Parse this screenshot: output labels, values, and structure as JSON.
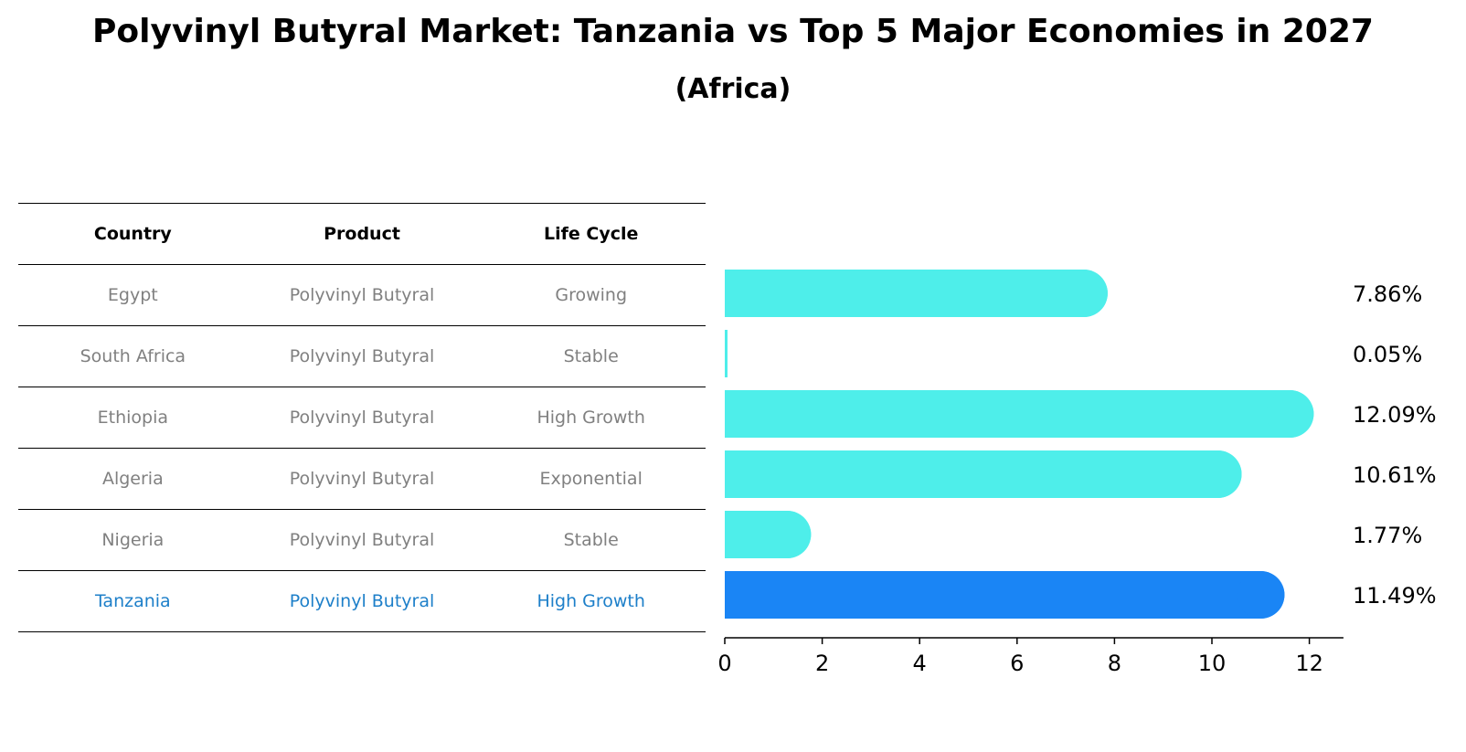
{
  "title": "Polyvinyl Butyral Market: Tanzania vs Top 5 Major Economies in 2027",
  "subtitle": "(Africa)",
  "table": {
    "headers": [
      "Country",
      "Product",
      "Life Cycle"
    ],
    "rows": [
      {
        "country": "Egypt",
        "product": "Polyvinyl Butyral",
        "life_cycle": "Growing"
      },
      {
        "country": "South Africa",
        "product": "Polyvinyl Butyral",
        "life_cycle": "Stable"
      },
      {
        "country": "Ethiopia",
        "product": "Polyvinyl Butyral",
        "life_cycle": "High Growth"
      },
      {
        "country": "Algeria",
        "product": "Polyvinyl Butyral",
        "life_cycle": "Exponential"
      },
      {
        "country": "Nigeria",
        "product": "Polyvinyl Butyral",
        "life_cycle": "Stable"
      },
      {
        "country": "Tanzania",
        "product": "Polyvinyl Butyral",
        "life_cycle": "High Growth"
      }
    ]
  },
  "colors": {
    "bar": "#4eeeea",
    "highlight_bar": "#1a85f5",
    "highlight_text": "#1d7fc9",
    "muted_text": "#808080"
  },
  "chart_data": {
    "type": "bar",
    "orientation": "horizontal",
    "categories": [
      "Egypt",
      "South Africa",
      "Ethiopia",
      "Algeria",
      "Nigeria",
      "Tanzania"
    ],
    "values": [
      7.86,
      0.05,
      12.09,
      10.61,
      1.77,
      11.49
    ],
    "value_labels": [
      "7.86%",
      "0.05%",
      "12.09%",
      "10.61%",
      "1.77%",
      "11.49%"
    ],
    "highlight": "Tanzania",
    "xlim": [
      0,
      12.7
    ],
    "xticks": [
      0,
      2,
      4,
      6,
      8,
      10,
      12
    ],
    "xlabel": "",
    "ylabel": ""
  }
}
